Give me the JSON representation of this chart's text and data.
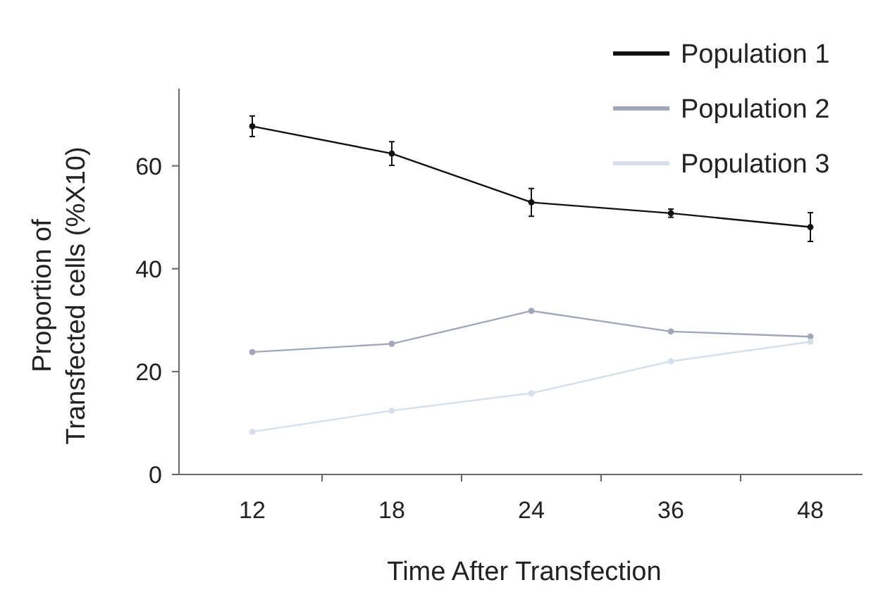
{
  "chart_data": {
    "type": "line",
    "xlabel": "Time After Transfection",
    "ylabel": "Proportion of Transfected cells (%X10)",
    "categories": [
      "12",
      "18",
      "24",
      "36",
      "48"
    ],
    "ylim": [
      0,
      75
    ],
    "yticks": [
      0,
      20,
      40,
      60
    ],
    "grid": false,
    "legend": "top right",
    "marker": "circle",
    "line_style": "solid",
    "series": [
      {
        "name": "Population 1",
        "color": "#111111",
        "values": [
          67.7,
          62.4,
          52.9,
          50.8,
          48.1
        ],
        "errors": [
          2,
          2.3,
          2.7,
          0.8,
          2.8
        ]
      },
      {
        "name": "Population 2",
        "color": "#a0a8b8",
        "values": [
          23.8,
          25.4,
          31.8,
          27.8,
          26.8
        ]
      },
      {
        "name": "Population 3",
        "color": "#d6e0ea",
        "values": [
          8.3,
          12.4,
          15.8,
          22,
          25.8
        ]
      }
    ]
  }
}
